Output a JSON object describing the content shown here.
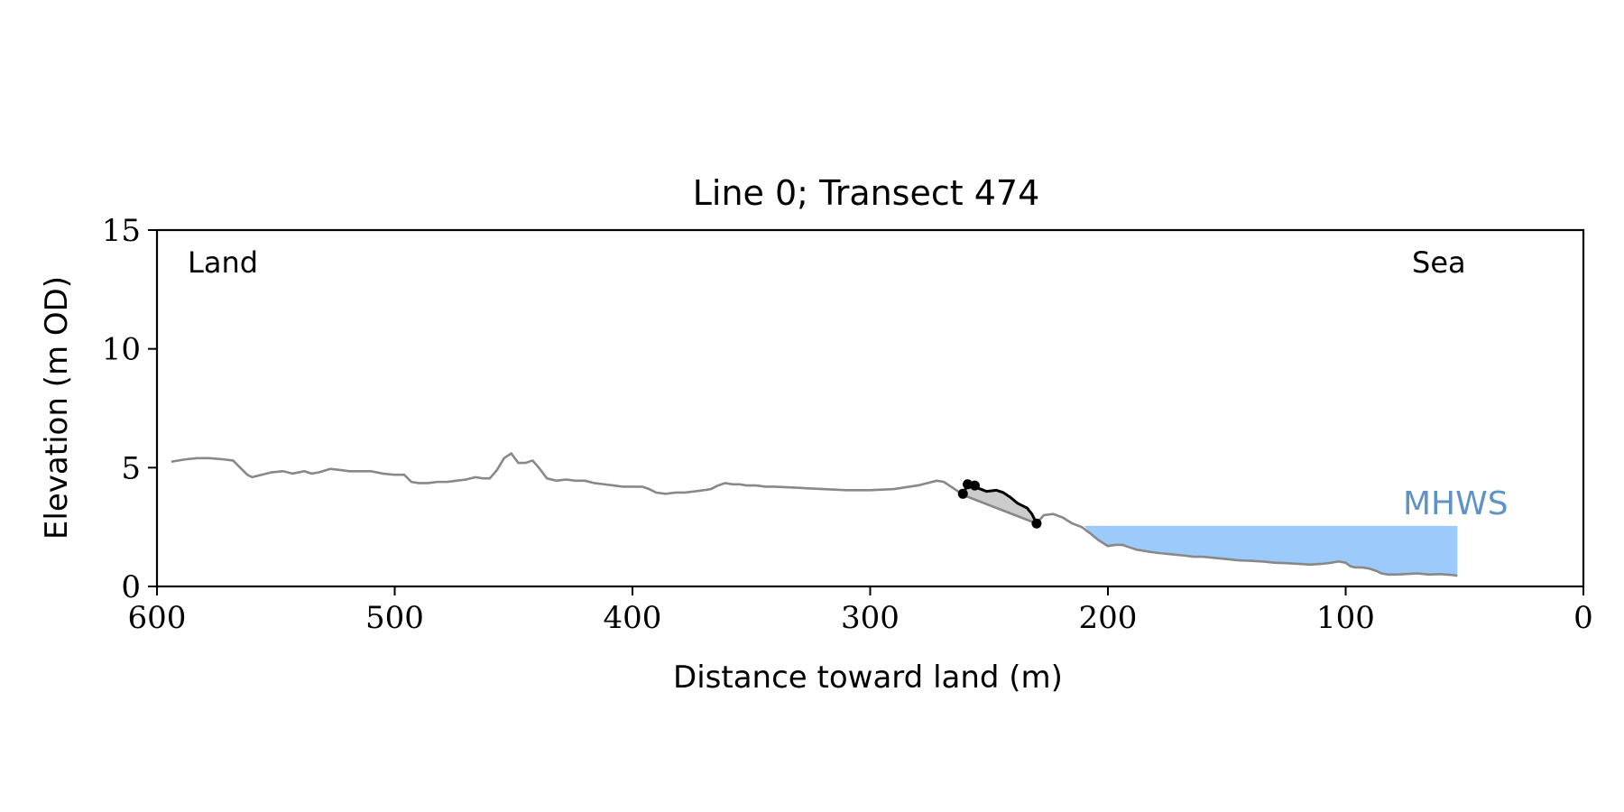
{
  "chart_data": {
    "type": "line",
    "title": "Line 0; Transect 474",
    "xlabel": "Distance toward land (m)",
    "ylabel": "Elevation (m OD)",
    "xlim": [
      600,
      0
    ],
    "ylim": [
      0,
      15
    ],
    "xticks": [
      600,
      500,
      400,
      300,
      200,
      100,
      0
    ],
    "yticks": [
      0,
      5,
      10,
      15
    ],
    "grid": false,
    "legend": "none",
    "annotations": {
      "land": "Land",
      "sea": "Sea",
      "mhws": "MHWS"
    },
    "mhws_level": 2.55,
    "mhws_extent": [
      53,
      210
    ],
    "colors": {
      "profile": "#888888",
      "feature": "#000000",
      "fill": "#cccccc",
      "water": "#9ccbfb",
      "mhws_label": "#5f93c7"
    },
    "series": [
      {
        "x": [
          594,
          588,
          583,
          578,
          572,
          568,
          565,
          562,
          560,
          556,
          552,
          547,
          543,
          538,
          535,
          532,
          527,
          523,
          519,
          515,
          510,
          505,
          500,
          496,
          493,
          490,
          486,
          482,
          478,
          474,
          470,
          466,
          463,
          460,
          457,
          454,
          451,
          448,
          445,
          442,
          439,
          436,
          432,
          428,
          424,
          420,
          416,
          412,
          408,
          404,
          400,
          396,
          393,
          390,
          386,
          382,
          378,
          374,
          370,
          367,
          364,
          361,
          358,
          355,
          352,
          348,
          344,
          340,
          330,
          320,
          310,
          300,
          290,
          280,
          276,
          272,
          269,
          266,
          263,
          261
        ],
        "y": [
          5.25,
          5.35,
          5.4,
          5.4,
          5.35,
          5.3,
          5.0,
          4.7,
          4.6,
          4.7,
          4.8,
          4.85,
          4.75,
          4.85,
          4.75,
          4.8,
          4.95,
          4.9,
          4.85,
          4.85,
          4.85,
          4.75,
          4.7,
          4.7,
          4.4,
          4.35,
          4.35,
          4.4,
          4.4,
          4.45,
          4.5,
          4.6,
          4.55,
          4.55,
          4.9,
          5.4,
          5.6,
          5.2,
          5.2,
          5.3,
          4.95,
          4.55,
          4.45,
          4.5,
          4.45,
          4.45,
          4.35,
          4.3,
          4.25,
          4.2,
          4.2,
          4.2,
          4.1,
          3.95,
          3.9,
          3.95,
          3.95,
          4.0,
          4.05,
          4.1,
          4.25,
          4.35,
          4.3,
          4.3,
          4.25,
          4.25,
          4.2,
          4.2,
          4.15,
          4.1,
          4.05,
          4.05,
          4.1,
          4.25,
          4.35,
          4.45,
          4.4,
          4.2,
          4.0,
          3.85
        ]
      },
      {
        "x": [
          230,
          227,
          223,
          219,
          215,
          211,
          207,
          204,
          200,
          197,
          194,
          191,
          188,
          185,
          182,
          178,
          173,
          168,
          164,
          160,
          155,
          150,
          145,
          140,
          135,
          130,
          125,
          120,
          115,
          110,
          106,
          103,
          100,
          98,
          96,
          93,
          90,
          87,
          85,
          82,
          79,
          75,
          70,
          65,
          60,
          55,
          53
        ],
        "y": [
          2.65,
          3.0,
          3.05,
          2.9,
          2.65,
          2.5,
          2.2,
          1.95,
          1.7,
          1.75,
          1.75,
          1.65,
          1.55,
          1.5,
          1.45,
          1.4,
          1.35,
          1.3,
          1.25,
          1.25,
          1.2,
          1.15,
          1.1,
          1.08,
          1.05,
          1.0,
          0.98,
          0.95,
          0.92,
          0.95,
          1.0,
          1.05,
          1.0,
          0.85,
          0.8,
          0.8,
          0.75,
          0.65,
          0.55,
          0.5,
          0.5,
          0.52,
          0.55,
          0.5,
          0.52,
          0.48,
          0.45
        ]
      },
      {
        "x": [
          261,
          259,
          257,
          255,
          251,
          247,
          244,
          241,
          238,
          236,
          234,
          232,
          230
        ],
        "y": [
          3.85,
          4.3,
          4.25,
          4.15,
          4.0,
          4.05,
          3.95,
          3.75,
          3.5,
          3.4,
          3.3,
          3.05,
          2.65
        ]
      }
    ],
    "markers": [
      {
        "x": 261,
        "y": 3.9
      },
      {
        "x": 259,
        "y": 4.3
      },
      {
        "x": 256,
        "y": 4.25
      },
      {
        "x": 230,
        "y": 2.65
      }
    ]
  }
}
